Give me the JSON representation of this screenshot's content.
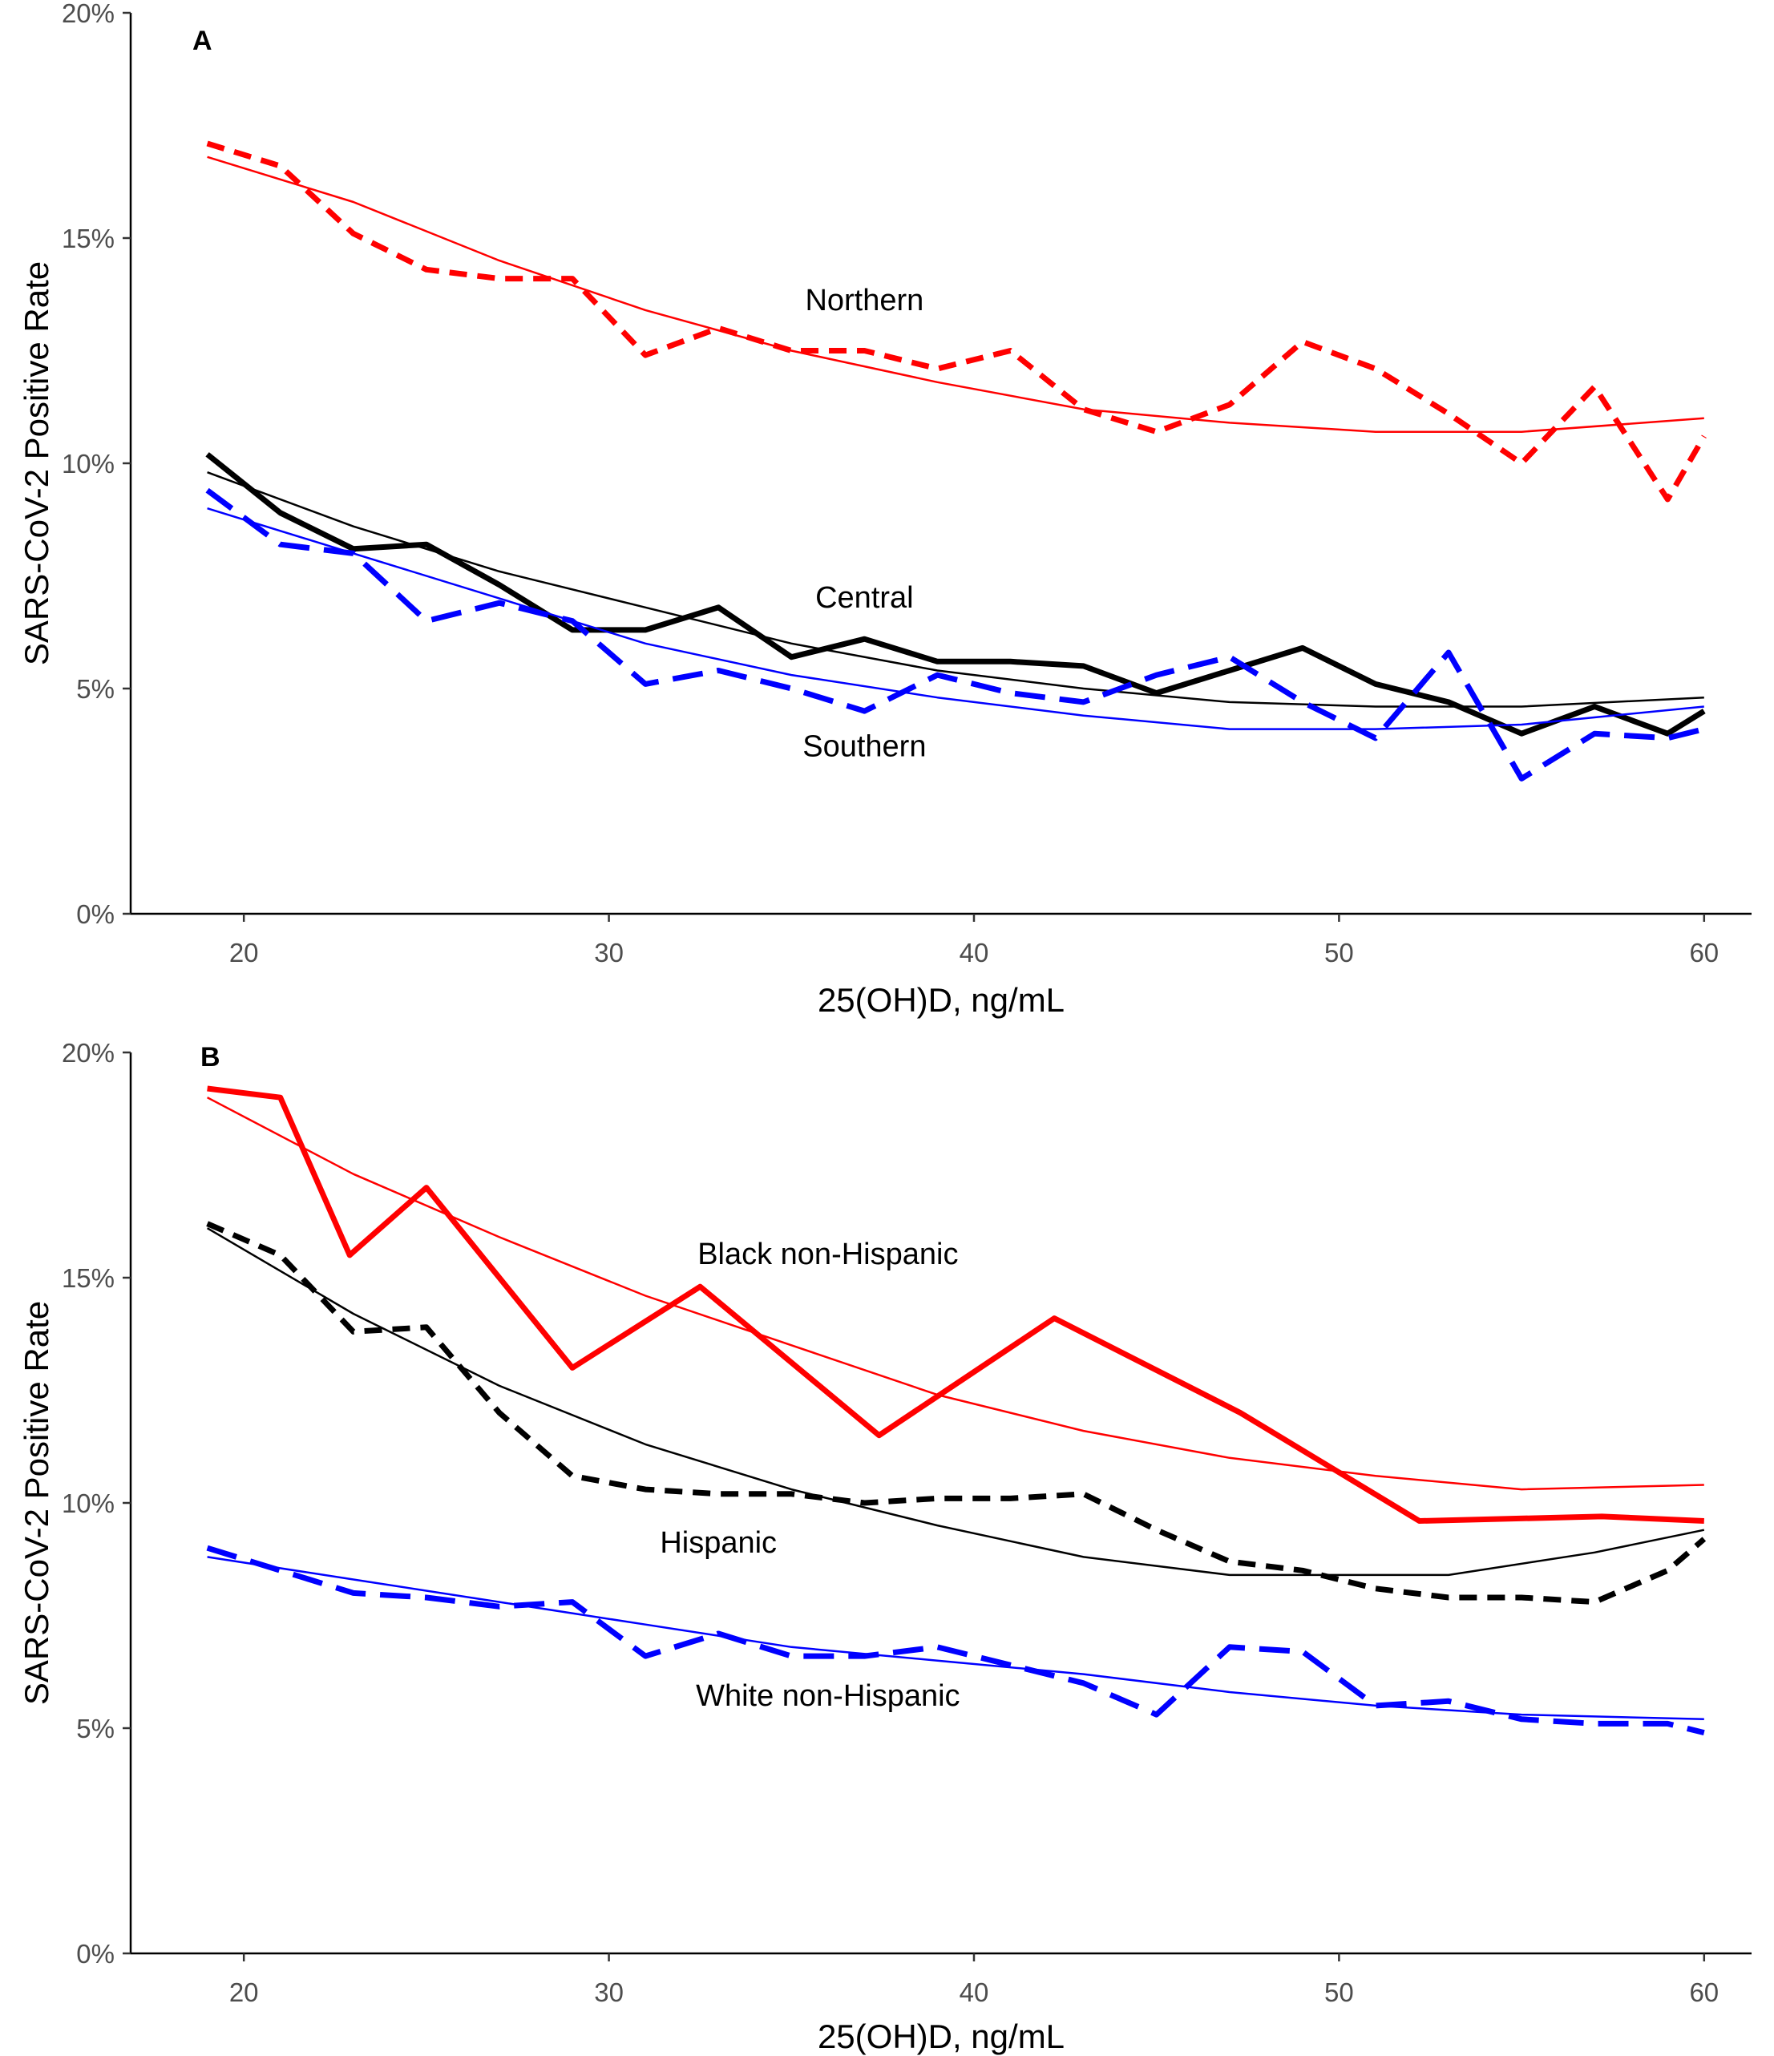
{
  "chart_data": [
    {
      "type": "line",
      "panel_label": "A",
      "xlabel": "25(OH)D, ng/mL",
      "ylabel": "SARS-CoV-2 Positive Rate",
      "xlim": [
        16.9,
        61.3
      ],
      "ylim": [
        0,
        20
      ],
      "x_ticks": [
        20,
        30,
        40,
        50,
        60
      ],
      "y_ticks": [
        0,
        5,
        10,
        15,
        20
      ],
      "y_tick_suffix": "%",
      "grid": false,
      "legend": "none",
      "annotations": [
        {
          "text": "Northern",
          "x": 37,
          "y": 13.4
        },
        {
          "text": "Central",
          "x": 37,
          "y": 6.8
        },
        {
          "text": "Southern",
          "x": 37,
          "y": 3.5
        }
      ],
      "series": [
        {
          "color": "#ff0000",
          "style": "dashed",
          "kind": "observed",
          "x": [
            19,
            21,
            23,
            25,
            27,
            29,
            31,
            33,
            35,
            37,
            39,
            41,
            43,
            45,
            47,
            49,
            51,
            53,
            55,
            57,
            59,
            60
          ],
          "y": [
            17.1,
            16.6,
            15.1,
            14.3,
            14.1,
            14.1,
            12.4,
            13.0,
            12.5,
            12.5,
            12.1,
            12.5,
            11.2,
            10.7,
            11.3,
            12.7,
            12.1,
            11.1,
            10.0,
            11.7,
            9.2,
            10.6
          ]
        },
        {
          "color": "#ff0000",
          "style": "solid-thin",
          "kind": "smoothed",
          "x": [
            19,
            23,
            27,
            31,
            35,
            39,
            43,
            47,
            51,
            55,
            60
          ],
          "y": [
            16.8,
            15.8,
            14.5,
            13.4,
            12.5,
            11.8,
            11.2,
            10.9,
            10.7,
            10.7,
            11.0
          ]
        },
        {
          "color": "#000000",
          "style": "solid-thick",
          "kind": "observed",
          "x": [
            19,
            21,
            23,
            25,
            27,
            29,
            31,
            33,
            35,
            37,
            39,
            41,
            43,
            45,
            47,
            49,
            51,
            53,
            55,
            57,
            59,
            60
          ],
          "y": [
            10.2,
            8.9,
            8.1,
            8.2,
            7.3,
            6.3,
            6.3,
            6.8,
            5.7,
            6.1,
            5.6,
            5.6,
            5.5,
            4.9,
            5.4,
            5.9,
            5.1,
            4.7,
            4.0,
            4.6,
            4.0,
            4.5
          ]
        },
        {
          "color": "#000000",
          "style": "solid-thin",
          "kind": "smoothed",
          "x": [
            19,
            23,
            27,
            31,
            35,
            39,
            43,
            47,
            51,
            55,
            60
          ],
          "y": [
            9.8,
            8.6,
            7.6,
            6.8,
            6.0,
            5.4,
            5.0,
            4.7,
            4.6,
            4.6,
            4.8
          ]
        },
        {
          "color": "#0000ff",
          "style": "longdash",
          "kind": "observed",
          "x": [
            19,
            21,
            23,
            25,
            27,
            29,
            31,
            33,
            35,
            37,
            39,
            41,
            43,
            45,
            47,
            49,
            51,
            53,
            55,
            57,
            59,
            60
          ],
          "y": [
            9.4,
            8.2,
            8.0,
            6.5,
            6.9,
            6.5,
            5.1,
            5.4,
            5.0,
            4.5,
            5.3,
            4.9,
            4.7,
            5.3,
            5.7,
            4.7,
            3.9,
            5.8,
            3.0,
            4.0,
            3.9,
            4.1
          ]
        },
        {
          "color": "#0000ff",
          "style": "solid-thin",
          "kind": "smoothed",
          "x": [
            19,
            23,
            27,
            31,
            35,
            39,
            43,
            47,
            51,
            55,
            60
          ],
          "y": [
            9.0,
            8.0,
            7.0,
            6.0,
            5.3,
            4.8,
            4.4,
            4.1,
            4.1,
            4.2,
            4.6
          ]
        }
      ]
    },
    {
      "type": "line",
      "panel_label": "B",
      "xlabel": "25(OH)D, ng/mL",
      "ylabel": "SARS-CoV-2 Positive Rate",
      "xlim": [
        16.9,
        61.3
      ],
      "ylim": [
        0,
        20
      ],
      "x_ticks": [
        20,
        30,
        40,
        50,
        60
      ],
      "y_ticks": [
        0,
        5,
        10,
        15,
        20
      ],
      "y_tick_suffix": "%",
      "grid": false,
      "legend": "none",
      "annotations": [
        {
          "text": "Black non-Hispanic",
          "x": 36,
          "y": 15.3
        },
        {
          "text": "Hispanic",
          "x": 33,
          "y": 8.9
        },
        {
          "text": "White non-Hispanic",
          "x": 36,
          "y": 5.5
        }
      ],
      "series": [
        {
          "color": "#ff0000",
          "style": "solid-thick",
          "kind": "observed",
          "x": [
            19,
            21,
            22.9,
            25,
            26.9,
            29,
            32.5,
            37.4,
            42.2,
            47.3,
            52.2,
            57.2,
            60
          ],
          "y": [
            19.2,
            19.0,
            15.5,
            17.0,
            15.1,
            13.0,
            14.8,
            11.5,
            14.1,
            12.0,
            9.6,
            9.7,
            9.6
          ]
        },
        {
          "color": "#ff0000",
          "style": "solid-thin",
          "kind": "smoothed",
          "x": [
            19,
            23,
            27,
            31,
            35,
            39,
            43,
            47,
            51,
            55,
            60
          ],
          "y": [
            19.0,
            17.3,
            15.9,
            14.6,
            13.5,
            12.4,
            11.6,
            11.0,
            10.6,
            10.3,
            10.4
          ]
        },
        {
          "color": "#000000",
          "style": "dashed",
          "kind": "observed",
          "x": [
            19,
            21,
            23,
            25,
            27,
            29,
            31,
            33,
            35,
            37,
            39,
            41,
            43,
            45,
            47,
            49,
            51,
            53,
            55,
            57,
            59,
            60
          ],
          "y": [
            16.2,
            15.5,
            13.8,
            13.9,
            12.0,
            10.6,
            10.3,
            10.2,
            10.2,
            10.0,
            10.1,
            10.1,
            10.2,
            9.4,
            8.7,
            8.5,
            8.1,
            7.9,
            7.9,
            7.8,
            8.5,
            9.2
          ]
        },
        {
          "color": "#000000",
          "style": "solid-thin",
          "kind": "smoothed",
          "x": [
            19,
            23,
            27,
            31,
            35,
            39,
            43,
            47,
            51,
            53,
            57,
            60
          ],
          "y": [
            16.1,
            14.2,
            12.6,
            11.3,
            10.3,
            9.5,
            8.8,
            8.4,
            8.4,
            8.4,
            8.9,
            9.4
          ]
        },
        {
          "color": "#0000ff",
          "style": "longdash",
          "kind": "observed",
          "x": [
            19,
            21,
            23,
            25,
            27,
            29,
            31,
            33,
            35,
            37,
            39,
            41,
            43,
            45,
            47,
            49,
            51,
            53,
            55,
            57,
            59,
            60
          ],
          "y": [
            9.0,
            8.5,
            8.0,
            7.9,
            7.7,
            7.8,
            6.6,
            7.1,
            6.6,
            6.6,
            6.8,
            6.4,
            6.0,
            5.3,
            6.8,
            6.7,
            5.5,
            5.6,
            5.2,
            5.1,
            5.1,
            4.9
          ]
        },
        {
          "color": "#0000ff",
          "style": "solid-thin",
          "kind": "smoothed",
          "x": [
            19,
            23,
            27,
            31,
            35,
            39,
            43,
            47,
            51,
            55,
            60
          ],
          "y": [
            8.8,
            8.3,
            7.8,
            7.3,
            6.8,
            6.5,
            6.2,
            5.8,
            5.5,
            5.3,
            5.2
          ]
        }
      ]
    }
  ]
}
